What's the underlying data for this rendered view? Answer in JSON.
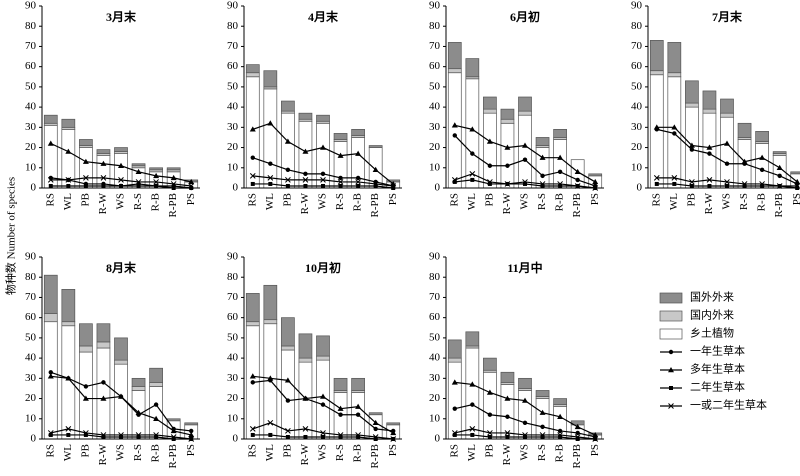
{
  "chart_data": [
    {
      "type": "bar",
      "title": "3月末",
      "y_label": "物种数 Number of species",
      "categories": [
        "RS",
        "WL",
        "PB",
        "R-W",
        "WS",
        "R-S",
        "R-B",
        "R-PB",
        "PS"
      ],
      "ylim": [
        0,
        90
      ],
      "yticks": [
        0,
        10,
        20,
        30,
        40,
        50,
        60,
        70,
        80,
        90
      ],
      "series": [
        {
          "name": "乡土植物",
          "kind": "bar",
          "color": "#ffffff",
          "values": [
            31,
            29,
            20,
            16,
            17,
            10,
            8,
            8,
            3
          ]
        },
        {
          "name": "国内外来",
          "kind": "bar",
          "color": "#c8c8c8",
          "values": [
            1,
            1,
            1,
            1,
            1,
            1,
            1,
            1,
            0
          ]
        },
        {
          "name": "国外外来",
          "kind": "bar",
          "color": "#8c8c8c",
          "values": [
            4,
            4,
            3,
            2,
            2,
            1,
            1,
            1,
            1
          ]
        },
        {
          "name": "一年生草本",
          "kind": "line",
          "marker": "circle",
          "color": "#000000",
          "values": [
            5,
            4,
            2,
            2,
            1,
            2,
            1,
            1,
            0
          ]
        },
        {
          "name": "多年生草本",
          "kind": "line",
          "marker": "triangle",
          "color": "#000000",
          "values": [
            22,
            18,
            13,
            12,
            11,
            8,
            6,
            5,
            3
          ]
        },
        {
          "name": "二年生草本",
          "kind": "line",
          "marker": "square",
          "color": "#000000",
          "values": [
            1,
            1,
            1,
            1,
            1,
            1,
            1,
            0,
            0
          ]
        },
        {
          "name": "一或二年生草本",
          "kind": "line",
          "marker": "x",
          "color": "#000000",
          "values": [
            4,
            4,
            5,
            5,
            4,
            3,
            3,
            2,
            1
          ]
        }
      ]
    },
    {
      "type": "bar",
      "title": "4月末",
      "categories": [
        "RS",
        "WL",
        "PB",
        "R-W",
        "WS",
        "R-S",
        "R-B",
        "R-PB",
        "PS"
      ],
      "ylim": [
        0,
        90
      ],
      "yticks": [
        0,
        10,
        20,
        30,
        40,
        50,
        60,
        70,
        80,
        90
      ],
      "series": [
        {
          "name": "乡土植物",
          "kind": "bar",
          "color": "#ffffff",
          "values": [
            55,
            49,
            37,
            33,
            32,
            23,
            25,
            20,
            3
          ]
        },
        {
          "name": "国内外来",
          "kind": "bar",
          "color": "#c8c8c8",
          "values": [
            2,
            1,
            1,
            1,
            1,
            1,
            1,
            0,
            0
          ]
        },
        {
          "name": "国外外来",
          "kind": "bar",
          "color": "#8c8c8c",
          "values": [
            4,
            8,
            5,
            3,
            3,
            3,
            3,
            1,
            1
          ]
        },
        {
          "name": "一年生草本",
          "kind": "line",
          "marker": "circle",
          "color": "#000000",
          "values": [
            15,
            12,
            9,
            7,
            7,
            5,
            5,
            3,
            1
          ]
        },
        {
          "name": "多年生草本",
          "kind": "line",
          "marker": "triangle",
          "color": "#000000",
          "values": [
            29,
            32,
            23,
            18,
            20,
            16,
            17,
            9,
            2
          ]
        },
        {
          "name": "二年生草本",
          "kind": "line",
          "marker": "square",
          "color": "#000000",
          "values": [
            2,
            2,
            1,
            1,
            1,
            1,
            1,
            1,
            0
          ]
        },
        {
          "name": "一或二年生草本",
          "kind": "line",
          "marker": "x",
          "color": "#000000",
          "values": [
            6,
            5,
            4,
            4,
            4,
            3,
            3,
            2,
            1
          ]
        }
      ]
    },
    {
      "type": "bar",
      "title": "6月初",
      "categories": [
        "RS",
        "WL",
        "PB",
        "R-W",
        "WS",
        "R-S",
        "R-B",
        "R-PB",
        "PS"
      ],
      "ylim": [
        0,
        90
      ],
      "yticks": [
        0,
        10,
        20,
        30,
        40,
        50,
        60,
        70,
        80,
        90
      ],
      "series": [
        {
          "name": "乡土植物",
          "kind": "bar",
          "color": "#ffffff",
          "values": [
            57,
            54,
            37,
            32,
            36,
            20,
            24,
            14,
            6
          ]
        },
        {
          "name": "国内外来",
          "kind": "bar",
          "color": "#c8c8c8",
          "values": [
            2,
            1,
            2,
            2,
            2,
            1,
            1,
            0,
            0
          ]
        },
        {
          "name": "国外外来",
          "kind": "bar",
          "color": "#8c8c8c",
          "values": [
            13,
            9,
            6,
            5,
            7,
            4,
            4,
            0,
            1
          ]
        },
        {
          "name": "一年生草本",
          "kind": "line",
          "marker": "circle",
          "color": "#000000",
          "values": [
            26,
            17,
            11,
            11,
            14,
            6,
            8,
            4,
            1
          ]
        },
        {
          "name": "多年生草本",
          "kind": "line",
          "marker": "triangle",
          "color": "#000000",
          "values": [
            31,
            29,
            23,
            20,
            21,
            15,
            15,
            8,
            3
          ]
        },
        {
          "name": "二年生草本",
          "kind": "line",
          "marker": "square",
          "color": "#000000",
          "values": [
            3,
            4,
            2,
            2,
            2,
            1,
            1,
            1,
            0
          ]
        },
        {
          "name": "一或二年生草本",
          "kind": "line",
          "marker": "x",
          "color": "#000000",
          "values": [
            4,
            7,
            3,
            2,
            3,
            2,
            2,
            1,
            0
          ]
        }
      ]
    },
    {
      "type": "bar",
      "title": "7月末",
      "categories": [
        "RS",
        "WL",
        "PB",
        "R-W",
        "WS",
        "R-S",
        "R-B",
        "R-PB",
        "PS"
      ],
      "ylim": [
        0,
        90
      ],
      "yticks": [
        0,
        10,
        20,
        30,
        40,
        50,
        60,
        70,
        80,
        90
      ],
      "series": [
        {
          "name": "乡土植物",
          "kind": "bar",
          "color": "#ffffff",
          "values": [
            56,
            55,
            40,
            37,
            35,
            24,
            22,
            16,
            7
          ]
        },
        {
          "name": "国内外来",
          "kind": "bar",
          "color": "#c8c8c8",
          "values": [
            2,
            2,
            2,
            2,
            2,
            1,
            1,
            1,
            0
          ]
        },
        {
          "name": "国外外来",
          "kind": "bar",
          "color": "#8c8c8c",
          "values": [
            15,
            15,
            11,
            9,
            7,
            7,
            5,
            1,
            1
          ]
        },
        {
          "name": "一年生草本",
          "kind": "line",
          "marker": "circle",
          "color": "#000000",
          "values": [
            29,
            27,
            19,
            17,
            12,
            12,
            9,
            6,
            2
          ]
        },
        {
          "name": "多年生草本",
          "kind": "line",
          "marker": "triangle",
          "color": "#000000",
          "values": [
            30,
            30,
            21,
            20,
            22,
            13,
            15,
            10,
            3
          ]
        },
        {
          "name": "二年生草本",
          "kind": "line",
          "marker": "square",
          "color": "#000000",
          "values": [
            2,
            2,
            1,
            1,
            1,
            1,
            1,
            1,
            0
          ]
        },
        {
          "name": "一或二年生草本",
          "kind": "line",
          "marker": "x",
          "color": "#000000",
          "values": [
            5,
            5,
            3,
            4,
            3,
            2,
            2,
            1,
            1
          ]
        }
      ]
    },
    {
      "type": "bar",
      "title": "8月末",
      "categories": [
        "RS",
        "WL",
        "PB",
        "R-W",
        "WS",
        "R-S",
        "R-B",
        "R-PB",
        "PS"
      ],
      "ylim": [
        0,
        90
      ],
      "yticks": [
        0,
        10,
        20,
        30,
        40,
        50,
        60,
        70,
        80,
        90
      ],
      "series": [
        {
          "name": "乡土植物",
          "kind": "bar",
          "color": "#ffffff",
          "values": [
            58,
            56,
            43,
            45,
            37,
            24,
            26,
            9,
            7
          ]
        },
        {
          "name": "国内外来",
          "kind": "bar",
          "color": "#c8c8c8",
          "values": [
            4,
            2,
            3,
            3,
            2,
            2,
            2,
            0,
            0
          ]
        },
        {
          "name": "国外外来",
          "kind": "bar",
          "color": "#8c8c8c",
          "values": [
            19,
            16,
            11,
            9,
            11,
            4,
            7,
            1,
            1
          ]
        },
        {
          "name": "一年生草本",
          "kind": "line",
          "marker": "circle",
          "color": "#000000",
          "values": [
            33,
            30,
            26,
            28,
            21,
            12,
            17,
            5,
            4
          ]
        },
        {
          "name": "多年生草本",
          "kind": "line",
          "marker": "triangle",
          "color": "#000000",
          "values": [
            31,
            30,
            20,
            20,
            21,
            13,
            10,
            4,
            2
          ]
        },
        {
          "name": "二年生草本",
          "kind": "line",
          "marker": "square",
          "color": "#000000",
          "values": [
            2,
            2,
            2,
            1,
            1,
            1,
            1,
            0,
            0
          ]
        },
        {
          "name": "一或二年生草本",
          "kind": "line",
          "marker": "x",
          "color": "#000000",
          "values": [
            3,
            5,
            3,
            2,
            2,
            2,
            2,
            1,
            0
          ]
        }
      ]
    },
    {
      "type": "bar",
      "title": "10月初",
      "categories": [
        "RS",
        "WL",
        "PB",
        "R-W",
        "WS",
        "R-S",
        "R-B",
        "R-PB",
        "PS"
      ],
      "ylim": [
        0,
        90
      ],
      "yticks": [
        0,
        10,
        20,
        30,
        40,
        50,
        60,
        70,
        80,
        90
      ],
      "series": [
        {
          "name": "乡土植物",
          "kind": "bar",
          "color": "#ffffff",
          "values": [
            56,
            57,
            44,
            38,
            39,
            23,
            23,
            12,
            7
          ]
        },
        {
          "name": "国内外来",
          "kind": "bar",
          "color": "#c8c8c8",
          "values": [
            2,
            2,
            2,
            2,
            2,
            1,
            1,
            0,
            0
          ]
        },
        {
          "name": "国外外来",
          "kind": "bar",
          "color": "#8c8c8c",
          "values": [
            14,
            17,
            14,
            12,
            10,
            6,
            6,
            1,
            1
          ]
        },
        {
          "name": "一年生草本",
          "kind": "line",
          "marker": "circle",
          "color": "#000000",
          "values": [
            28,
            29,
            19,
            20,
            17,
            12,
            12,
            5,
            4
          ]
        },
        {
          "name": "多年生草本",
          "kind": "line",
          "marker": "triangle",
          "color": "#000000",
          "values": [
            31,
            30,
            29,
            20,
            21,
            15,
            16,
            8,
            3
          ]
        },
        {
          "name": "二年生草本",
          "kind": "line",
          "marker": "square",
          "color": "#000000",
          "values": [
            2,
            2,
            1,
            1,
            1,
            1,
            1,
            0,
            0
          ]
        },
        {
          "name": "一或二年生草本",
          "kind": "line",
          "marker": "x",
          "color": "#000000",
          "values": [
            5,
            8,
            4,
            5,
            3,
            2,
            2,
            1,
            0
          ]
        }
      ]
    },
    {
      "type": "bar",
      "title": "11月中",
      "categories": [
        "RS",
        "WL",
        "PB",
        "R-W",
        "WS",
        "R-S",
        "R-B",
        "R-PB",
        "PS"
      ],
      "ylim": [
        0,
        90
      ],
      "yticks": [
        0,
        10,
        20,
        30,
        40,
        50,
        60,
        70,
        80,
        90
      ],
      "series": [
        {
          "name": "乡土植物",
          "kind": "bar",
          "color": "#ffffff",
          "values": [
            38,
            45,
            33,
            27,
            24,
            20,
            16,
            7,
            2
          ]
        },
        {
          "name": "国内外来",
          "kind": "bar",
          "color": "#c8c8c8",
          "values": [
            2,
            1,
            1,
            1,
            1,
            1,
            1,
            0,
            0
          ]
        },
        {
          "name": "国外外来",
          "kind": "bar",
          "color": "#8c8c8c",
          "values": [
            9,
            7,
            6,
            5,
            5,
            3,
            3,
            2,
            1
          ]
        },
        {
          "name": "一年生草本",
          "kind": "line",
          "marker": "circle",
          "color": "#000000",
          "values": [
            15,
            17,
            12,
            11,
            8,
            6,
            4,
            3,
            1
          ]
        },
        {
          "name": "多年生草本",
          "kind": "line",
          "marker": "triangle",
          "color": "#000000",
          "values": [
            28,
            27,
            23,
            20,
            19,
            13,
            11,
            6,
            2
          ]
        },
        {
          "name": "二年生草本",
          "kind": "line",
          "marker": "square",
          "color": "#000000",
          "values": [
            2,
            2,
            1,
            1,
            1,
            1,
            1,
            0,
            0
          ]
        },
        {
          "name": "一或二年生草本",
          "kind": "line",
          "marker": "x",
          "color": "#000000",
          "values": [
            3,
            5,
            3,
            3,
            2,
            2,
            2,
            1,
            0
          ]
        }
      ]
    }
  ]
}
